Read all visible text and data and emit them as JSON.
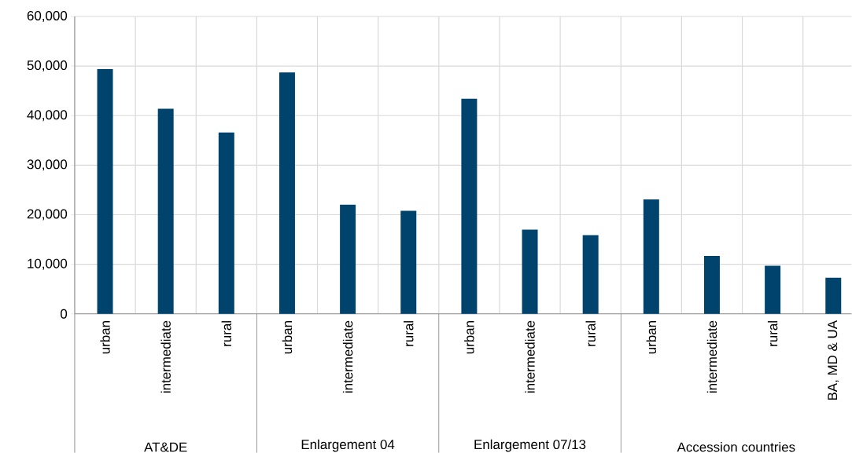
{
  "chart_data": {
    "type": "bar",
    "categories": [
      "urban",
      "intermediate",
      "rural",
      "urban",
      "intermediate",
      "rural",
      "urban",
      "intermediate",
      "rural",
      "urban",
      "intermediate",
      "rural",
      "BA, MD & UA"
    ],
    "values": [
      49400,
      41400,
      36600,
      48700,
      22000,
      20800,
      43400,
      17000,
      15900,
      23100,
      11700,
      9700,
      7300
    ],
    "color": "#00446e",
    "ylim": [
      0,
      60000
    ],
    "yticks": [
      {
        "value": 0,
        "label": "0"
      },
      {
        "value": 10000,
        "label": "10,000"
      },
      {
        "value": 20000,
        "label": "20,000"
      },
      {
        "value": 30000,
        "label": "30,000"
      },
      {
        "value": 40000,
        "label": "40,000"
      },
      {
        "value": 50000,
        "label": "50,000"
      },
      {
        "value": 60000,
        "label": "60,000"
      }
    ],
    "grid": true,
    "annotations": [
      "AT&DE",
      "Enlargement 04",
      "Enlargement 07/13",
      "Accession countries"
    ]
  }
}
